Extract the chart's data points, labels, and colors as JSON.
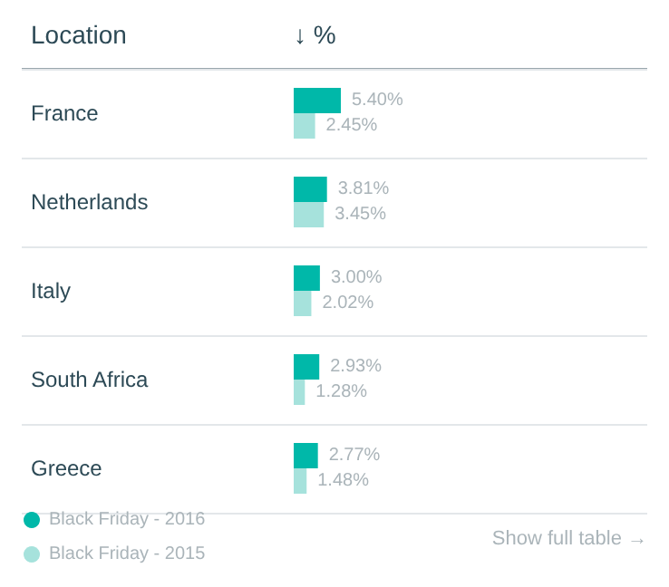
{
  "chart_data": {
    "type": "bar",
    "orientation": "horizontal",
    "ylabel": "Location",
    "xlabel": "↓ %",
    "categories": [
      "France",
      "Netherlands",
      "Italy",
      "South Africa",
      "Greece"
    ],
    "series": [
      {
        "name": "Black Friday - 2016",
        "color": "#00b8a9",
        "values": [
          5.4,
          3.81,
          3.0,
          2.93,
          2.77
        ],
        "value_labels": [
          "5.40%",
          "3.81%",
          "3.00%",
          "2.93%",
          "2.77%"
        ]
      },
      {
        "name": "Black Friday - 2015",
        "color": "#a6e2dc",
        "values": [
          2.45,
          3.45,
          2.02,
          1.28,
          1.48
        ],
        "value_labels": [
          "2.45%",
          "3.45%",
          "2.02%",
          "1.28%",
          "1.48%"
        ]
      }
    ],
    "grid": "y",
    "legend": "bottom left",
    "annotations": [
      "Show full table →"
    ]
  }
}
